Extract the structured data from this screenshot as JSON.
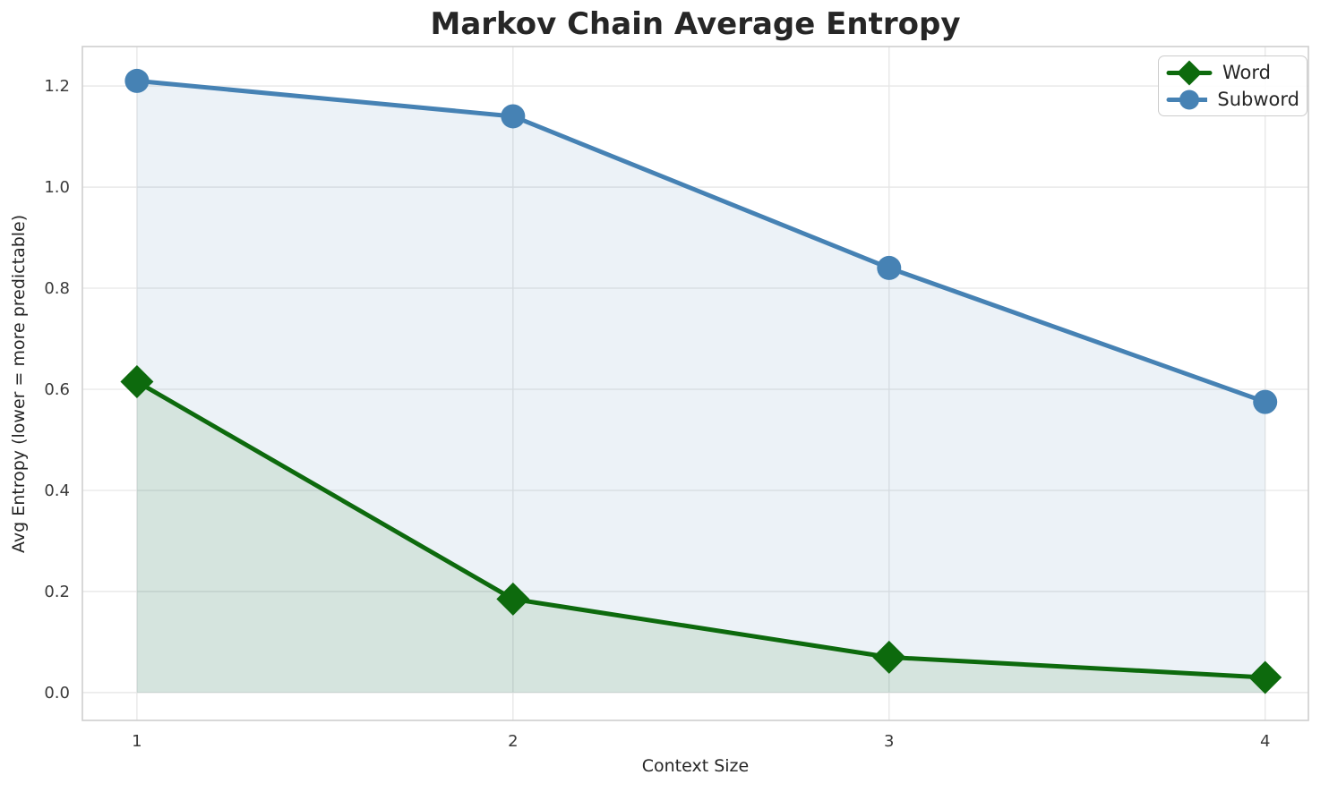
{
  "chart_data": {
    "type": "line",
    "title": "Markov Chain Average Entropy",
    "xlabel": "Context Size",
    "ylabel": "Avg Entropy (lower = more predictable)",
    "x": [
      1,
      2,
      3,
      4
    ],
    "xtick_labels": [
      "1",
      "2",
      "3",
      "4"
    ],
    "ytick_values": [
      0.0,
      0.2,
      0.4,
      0.6,
      0.8,
      1.0,
      1.2
    ],
    "ytick_labels": [
      "0.0",
      "0.2",
      "0.4",
      "0.6",
      "0.8",
      "1.0",
      "1.2"
    ],
    "xlim": [
      0.855,
      4.115
    ],
    "ylim": [
      -0.055,
      1.278
    ],
    "grid": true,
    "legend_position": "upper right",
    "series": [
      {
        "name": "Word",
        "marker": "diamond",
        "color": "#0d6a0d",
        "values": [
          0.615,
          0.185,
          0.07,
          0.03
        ],
        "fill_to_zero": true
      },
      {
        "name": "Subword",
        "marker": "circle",
        "color": "#4682b4",
        "values": [
          1.21,
          1.14,
          0.84,
          0.575
        ],
        "fill_to_zero": true
      }
    ],
    "style": {
      "grid_color": "#e6e6e6",
      "spine_color": "#cfcfcf",
      "text_color": "#262626",
      "tick_color": "#3a3a3a",
      "fill_opacity": 0.1,
      "background": "#ffffff",
      "line_width": 5
    }
  }
}
